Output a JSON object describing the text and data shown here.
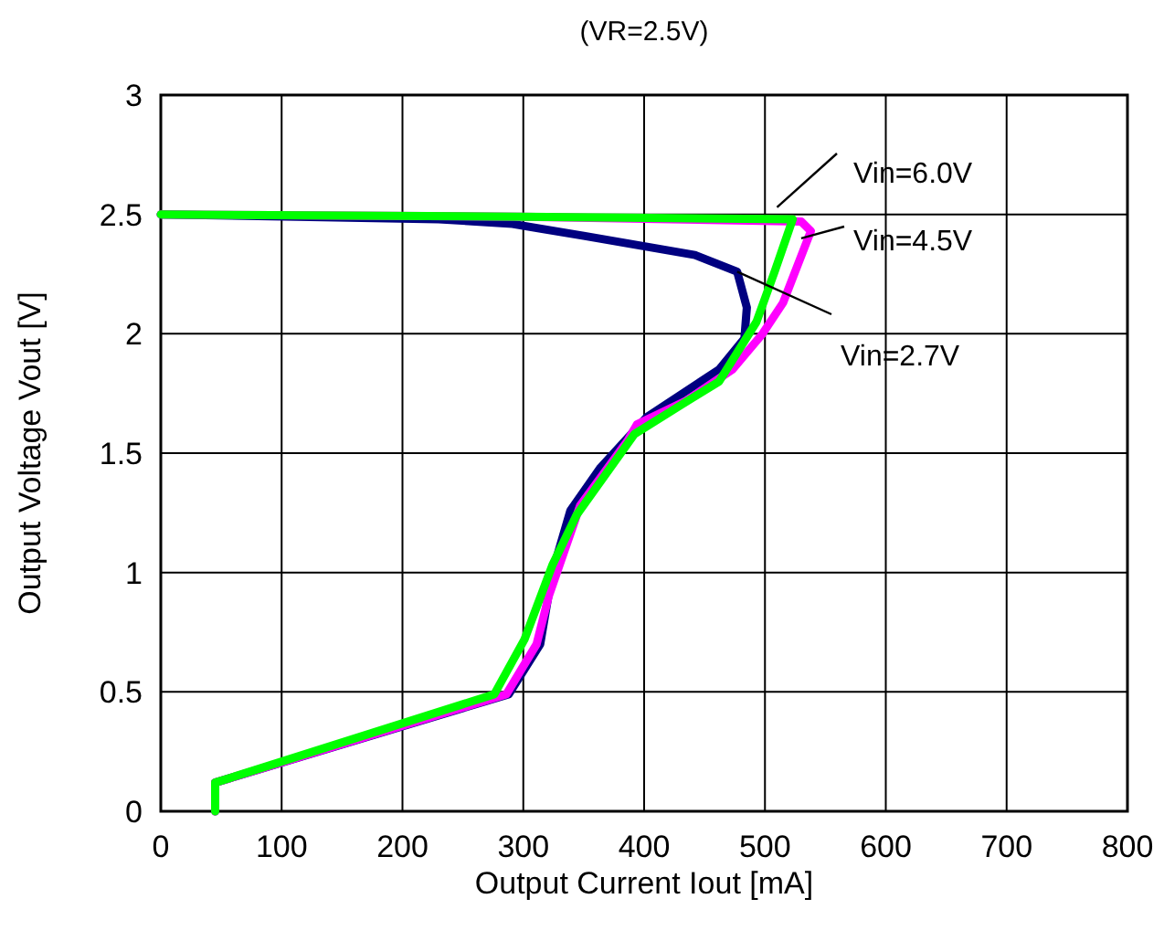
{
  "chart_data": {
    "type": "line",
    "title": "(VR=2.5V)",
    "xlabel": "Output Current Iout [mA]",
    "ylabel": "Output Voltage Vout [V]",
    "xlim": [
      0,
      800
    ],
    "xticks": [
      0,
      100,
      200,
      300,
      400,
      500,
      600,
      700,
      800
    ],
    "ylim": [
      0,
      3
    ],
    "yticks": [
      0,
      0.5,
      1,
      1.5,
      2,
      2.5,
      3
    ],
    "grid": true,
    "line_style": "solid",
    "series": [
      {
        "name": "Vin=2.7V",
        "color": "#000080",
        "x": [
          0,
          230,
          291,
          350,
          442,
          477,
          485,
          483,
          462,
          402,
          364,
          339,
          324,
          314,
          288,
          45,
          45
        ],
        "values": [
          2.5,
          2.48,
          2.46,
          2.41,
          2.33,
          2.26,
          2.11,
          1.98,
          1.85,
          1.65,
          1.44,
          1.26,
          1.0,
          0.7,
          0.49,
          0.12,
          0
        ]
      },
      {
        "name": "Vin=4.5V",
        "color": "#ff00ff",
        "x": [
          0,
          300,
          530,
          538,
          515,
          498,
          473,
          435,
          394,
          386,
          347,
          321,
          311,
          286,
          45,
          45
        ],
        "values": [
          2.5,
          2.49,
          2.47,
          2.43,
          2.13,
          2.0,
          1.85,
          1.72,
          1.62,
          1.55,
          1.28,
          0.9,
          0.7,
          0.49,
          0.12,
          0
        ]
      },
      {
        "name": "Vin=6.0V",
        "color": "#00ff00",
        "x": [
          0,
          300,
          523,
          508,
          493,
          462,
          430,
          392,
          344,
          324,
          301,
          276,
          45,
          45
        ],
        "values": [
          2.5,
          2.49,
          2.48,
          2.26,
          2.05,
          1.8,
          1.7,
          1.58,
          1.24,
          1.03,
          0.72,
          0.49,
          0.12,
          0
        ]
      }
    ]
  }
}
